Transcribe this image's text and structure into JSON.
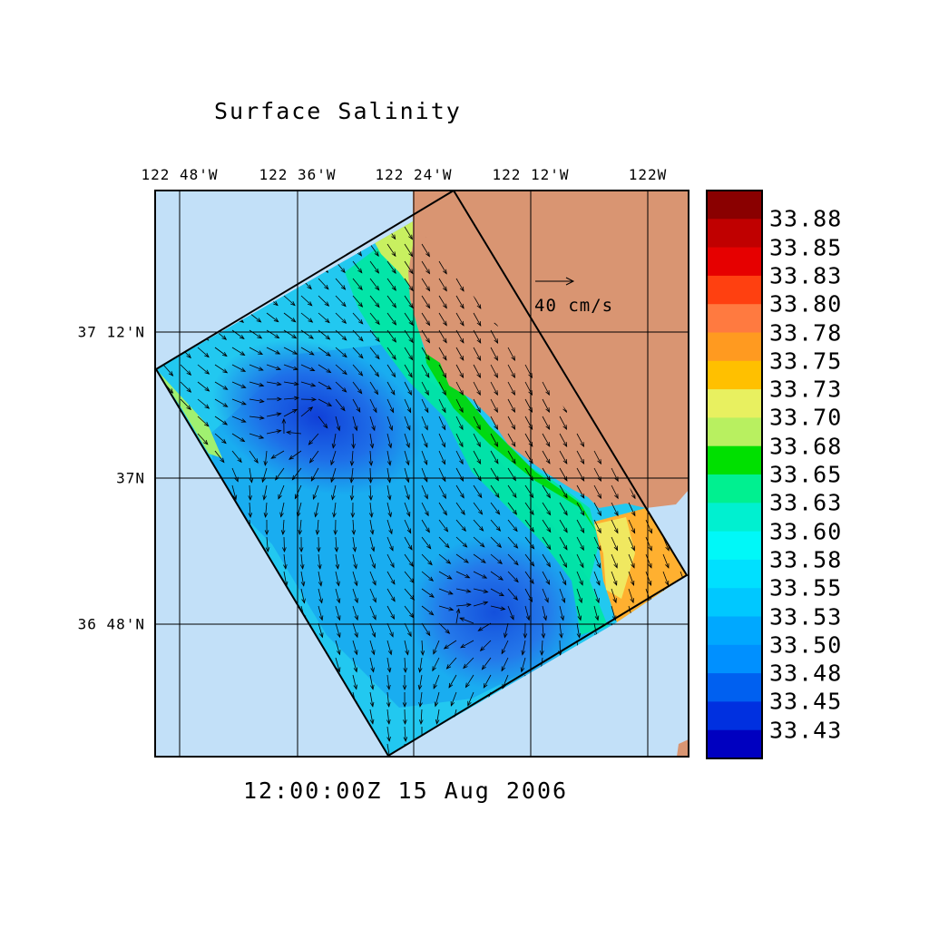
{
  "title": "Surface Salinity",
  "timestamp": "12:00:00Z  15 Aug 2006",
  "lon_labels": [
    "122 48'W",
    "122 36'W",
    "122 24'W",
    "122 12'W",
    "122W"
  ],
  "lat_labels": [
    "37 12'N",
    "37N",
    "36 48'N"
  ],
  "vector_scale_label": "40 cm/s",
  "legend": {
    "labels": [
      "33.88",
      "33.85",
      "33.83",
      "33.80",
      "33.78",
      "33.75",
      "33.73",
      "33.70",
      "33.68",
      "33.65",
      "33.63",
      "33.60",
      "33.58",
      "33.55",
      "33.53",
      "33.50",
      "33.48",
      "33.45",
      "33.43"
    ],
    "colors": [
      "#8a0000",
      "#c00000",
      "#e60000",
      "#ff4010",
      "#ff7a40",
      "#ff9a20",
      "#ffc000",
      "#e8f060",
      "#b8f060",
      "#00e000",
      "#00f090",
      "#00f0d0",
      "#00f8f8",
      "#00e0ff",
      "#00c8ff",
      "#00a8ff",
      "#0090ff",
      "#0060f0",
      "#0030e0",
      "#0000c0"
    ]
  },
  "colors": {
    "ocean": "#c2e0f8",
    "land": "#d99572",
    "grid": "#000000"
  }
}
